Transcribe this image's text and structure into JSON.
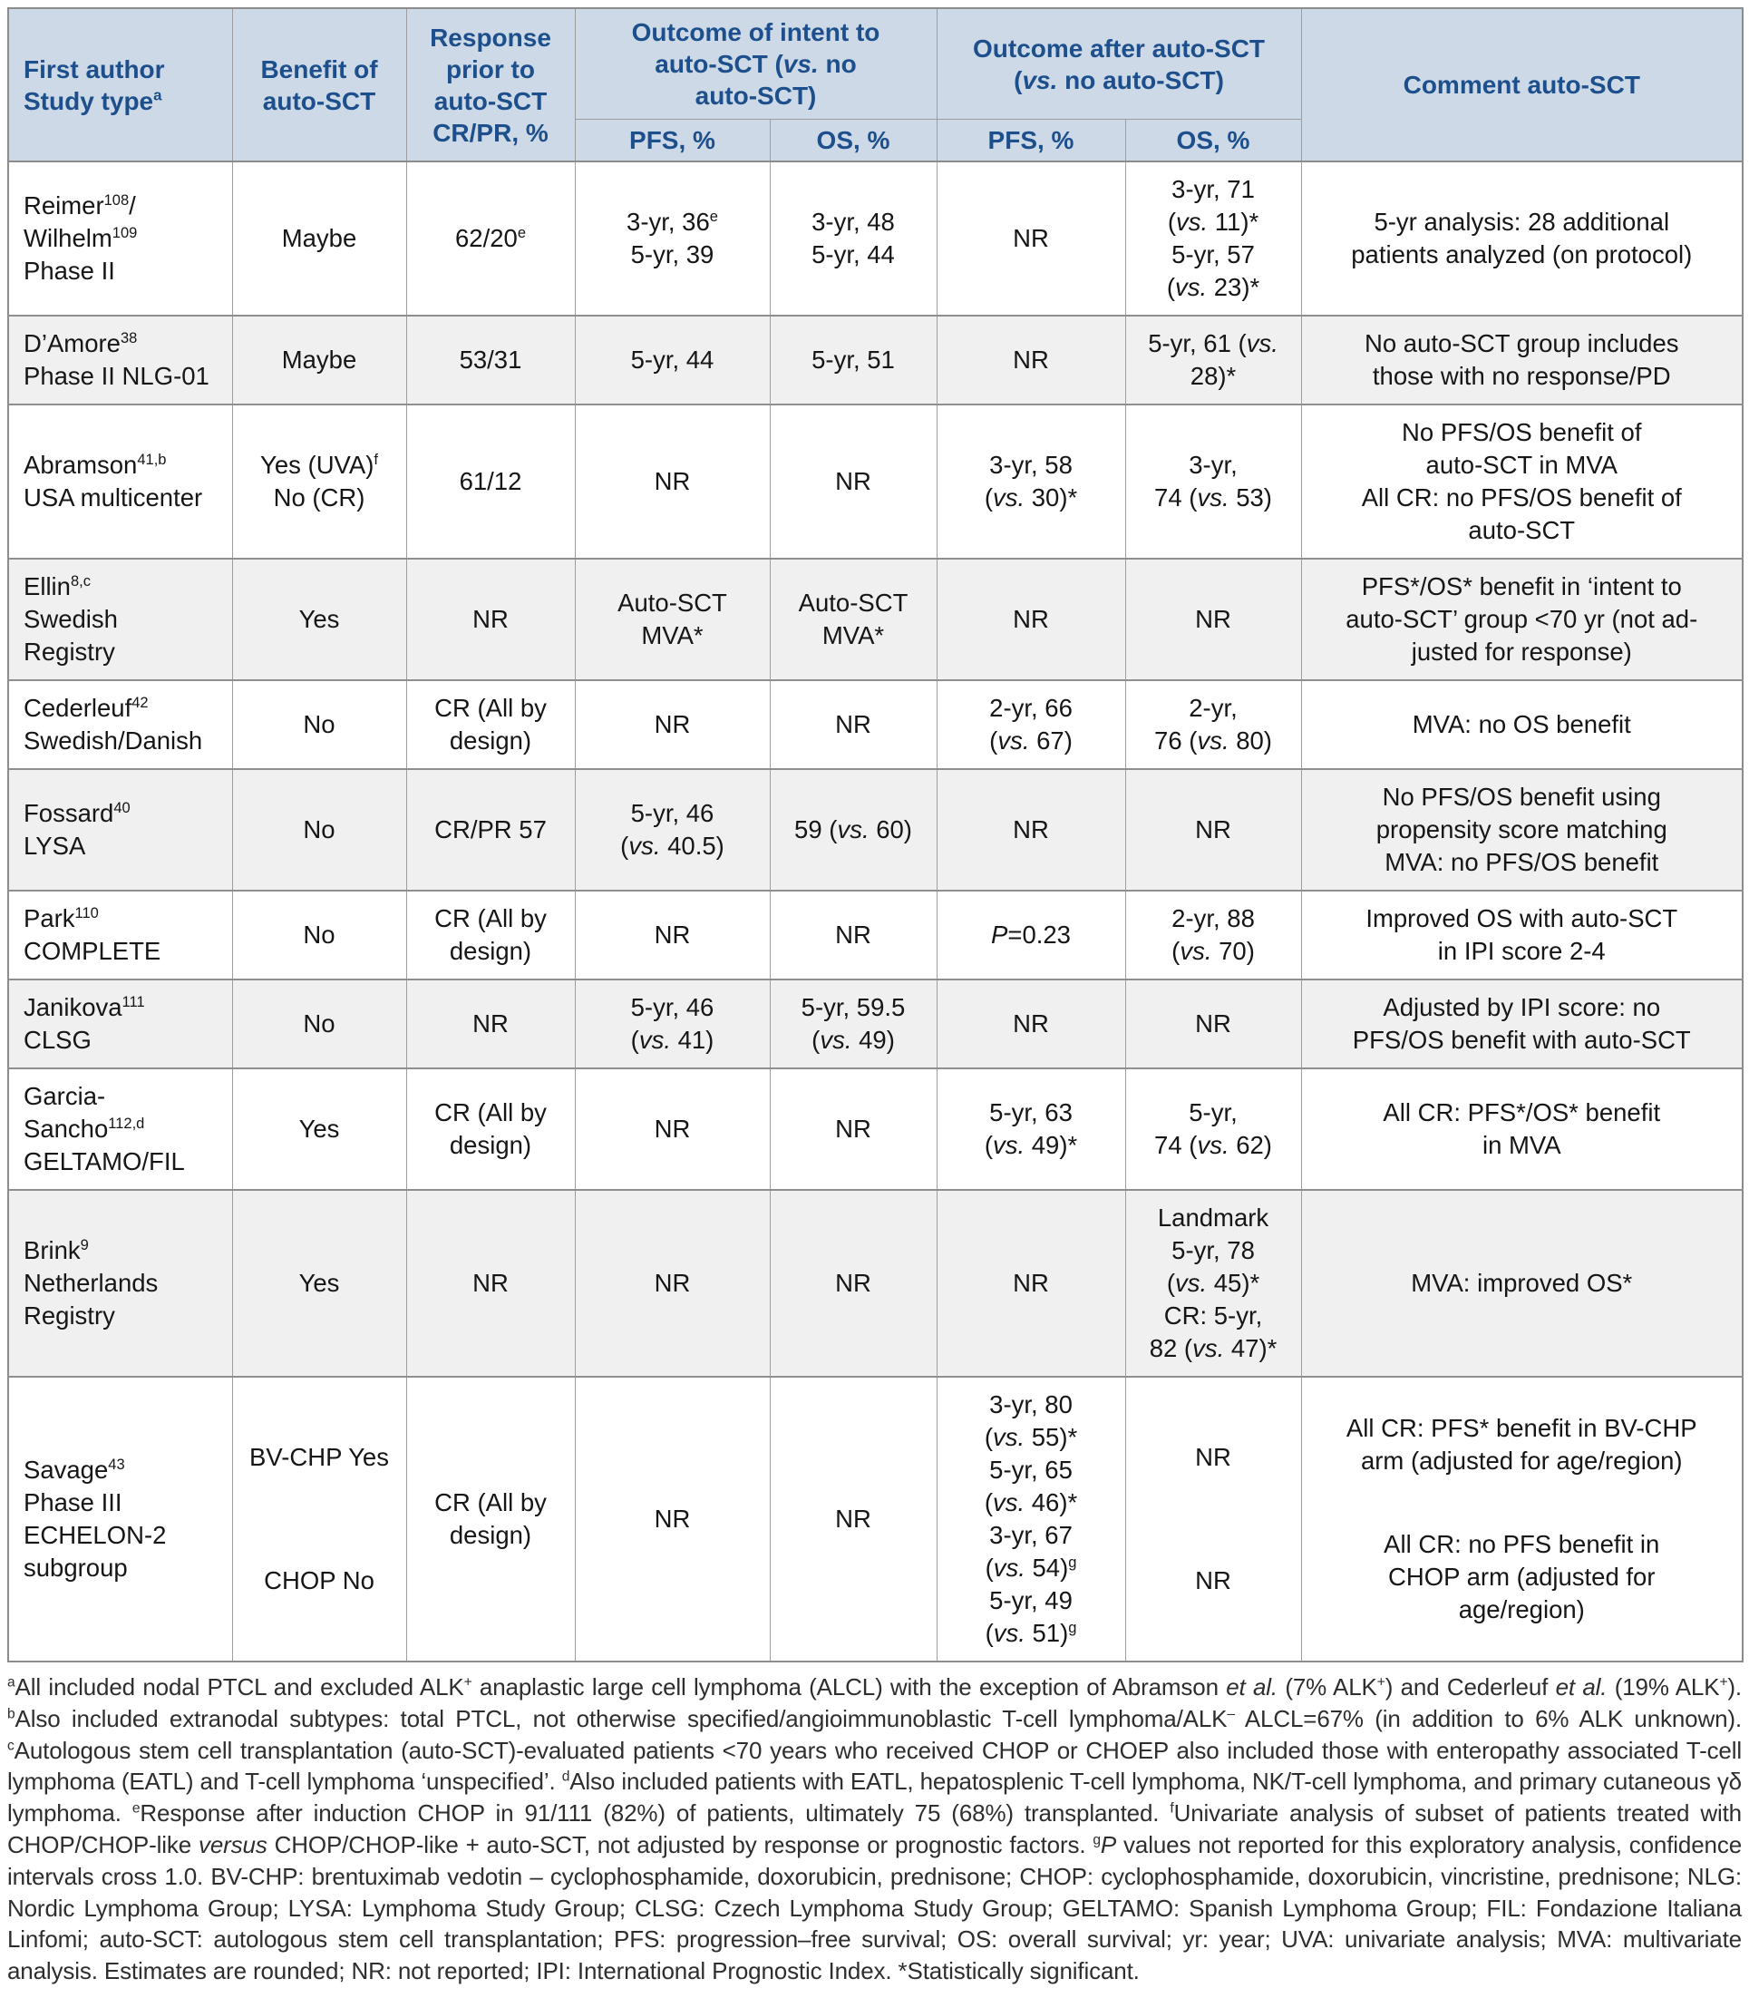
{
  "colors": {
    "header_bg": "#cdd9e6",
    "header_text": "#1c4f8c",
    "row_alt_bg": "#f0f0f0",
    "border": "#8c8c8c"
  },
  "table": {
    "header": {
      "col_author": "First author\nStudy type^{a}",
      "col_benefit": "Benefit of\nauto-SCT",
      "col_response": "Response\nprior to\nauto-SCT\nCR/PR, %",
      "group_intent": "Outcome of intent to\nauto-SCT (~vs.~ no\nauto-SCT)",
      "group_after": "Outcome after auto-SCT\n(~vs.~ no auto-SCT)",
      "sub_pfs": "PFS, %",
      "sub_os": "OS, %",
      "col_comment": "Comment auto-SCT"
    },
    "rows": [
      {
        "author": "Reimer^{108}/\nWilhelm^{109}\nPhase II",
        "benefit": "Maybe",
        "response": "62/20^{e}",
        "pfs_intent": "3-yr, 36^{e}\n5-yr, 39",
        "os_intent": "3-yr, 48\n5-yr, 44",
        "pfs_after": "NR",
        "os_after": "3-yr, 71\n(~vs.~ 11)*\n5-yr, 57\n(~vs.~ 23)*",
        "comment": "5-yr analysis: 28 additional\npatients analyzed (on protocol)"
      },
      {
        "author": "D’Amore^{38}\nPhase II NLG-01",
        "benefit": "Maybe",
        "response": "53/31",
        "pfs_intent": "5-yr, 44",
        "os_intent": "5-yr, 51",
        "pfs_after": "NR",
        "os_after": "5-yr, 61 (~vs.~\n28)*",
        "comment": "No auto-SCT group includes\nthose with no response/PD"
      },
      {
        "author": "Abramson^{41,b}\nUSA multicenter",
        "benefit": "Yes (UVA)^{f}\nNo (CR)",
        "response": "61/12",
        "pfs_intent": "NR",
        "os_intent": "NR",
        "pfs_after": "3-yr, 58\n(~vs.~ 30)*",
        "os_after": "3-yr,\n74 (~vs.~ 53)",
        "comment": "No PFS/OS benefit of\nauto-SCT in MVA\nAll CR: no PFS/OS benefit of\nauto-SCT"
      },
      {
        "author": "Ellin^{8,c}\nSwedish\nRegistry",
        "benefit": "Yes",
        "response": "NR",
        "pfs_intent": "Auto-SCT\nMVA*",
        "os_intent": "Auto-SCT\nMVA*",
        "pfs_after": "NR",
        "os_after": "NR",
        "comment": "PFS*/OS* benefit in ‘intent to\nauto-SCT’ group <70 yr (not ad-\njusted for response)"
      },
      {
        "author": "Cederleuf^{42}\nSwedish/Danish",
        "benefit": "No",
        "response": "CR (All by\ndesign)",
        "pfs_intent": "NR",
        "os_intent": "NR",
        "pfs_after": "2-yr, 66\n(~vs.~ 67)",
        "os_after": "2-yr,\n76 (~vs.~ 80)",
        "comment": "MVA: no OS benefit"
      },
      {
        "author": "Fossard^{40}\nLYSA",
        "benefit": "No",
        "response": "CR/PR 57",
        "pfs_intent": "5-yr, 46\n(~vs.~ 40.5)",
        "os_intent": "59 (~vs.~ 60)",
        "pfs_after": "NR",
        "os_after": "NR",
        "comment": "No PFS/OS benefit using\npropensity score matching\nMVA: no PFS/OS benefit"
      },
      {
        "author": "Park^{110}\nCOMPLETE",
        "benefit": "No",
        "response": "CR (All by\ndesign)",
        "pfs_intent": "NR",
        "os_intent": "NR",
        "pfs_after": "~P~=0.23",
        "os_after": "2-yr, 88\n(~vs.~ 70)",
        "comment": "Improved OS with auto-SCT\nin IPI score 2-4"
      },
      {
        "author": "Janikova^{111}\nCLSG",
        "benefit": "No",
        "response": "NR",
        "pfs_intent": "5-yr, 46\n(~vs.~ 41)",
        "os_intent": "5-yr, 59.5\n(~vs.~ 49)",
        "pfs_after": "NR",
        "os_after": "NR",
        "comment": "Adjusted by IPI score: no\nPFS/OS benefit with auto-SCT"
      },
      {
        "author": "Garcia-\nSancho^{112,d}\nGELTAMO/FIL",
        "benefit": "Yes",
        "response": "CR (All by\ndesign)",
        "pfs_intent": "NR",
        "os_intent": "NR",
        "pfs_after": "5-yr, 63\n(~vs.~ 49)*",
        "os_after": "5-yr,\n74 (~vs.~ 62)",
        "comment": "All CR: PFS*/OS* benefit\nin MVA"
      },
      {
        "author": "Brink^{9}\nNetherlands\nRegistry",
        "benefit": "Yes",
        "response": "NR",
        "pfs_intent": "NR",
        "os_intent": "NR",
        "pfs_after": "NR",
        "os_after": "Landmark\n5-yr, 78\n(~vs.~ 45)*\nCR: 5-yr,\n82 (~vs.~ 47)*",
        "comment": "MVA: improved OS*"
      },
      {
        "author": "Savage^{43}\nPhase III\nECHELON-2\nsubgroup",
        "benefit": [
          "BV-CHP Yes",
          "CHOP No"
        ],
        "response": "CR (All by\ndesign)",
        "pfs_intent": "NR",
        "os_intent": "NR",
        "pfs_after": "3-yr, 80\n(~vs.~ 55)*\n5-yr, 65\n(~vs.~ 46)*\n3-yr, 67\n(~vs.~ 54)^{g}\n5-yr, 49\n(~vs.~ 51)^{g}",
        "os_after": [
          "NR",
          "NR"
        ],
        "comment": [
          "All CR: PFS* benefit in BV-CHP\narm (adjusted for age/region)",
          "All CR: no PFS benefit in\nCHOP arm (adjusted for\nage/region)"
        ]
      }
    ]
  },
  "footnote": "^{a}All included nodal PTCL and excluded ALK^{+} anaplastic large cell lymphoma (ALCL) with the exception of Abramson ~et al.~ (7% ALK^{+}) and Cederleuf ~et al.~ (19% ALK^{+}). ^{b}Also included extranodal subtypes: total PTCL, not otherwise specified/angioimmunoblastic T-cell lymphoma/ALK^{–} ALCL=67% (in addition to 6% ALK unknown). ^{c}Autologous stem cell transplantation (auto-SCT)-evaluated patients <70 years who received CHOP or CHOEP also included those with enteropathy associated T-cell lymphoma (EATL) and T-cell lymphoma ‘unspecified’. ^{d}Also included patients with EATL, hepatosplenic T-cell lymphoma, NK/T-cell lymphoma, and primary cutaneous γδ  lymphoma. ^{e}Response after induction CHOP in 91/111 (82%) of patients, ultimately 75 (68%) transplanted. ^{f}Univariate analysis of subset of patients treated with CHOP/CHOP-like ~versus~ CHOP/CHOP-like + auto-SCT, not adjusted by response or prognostic factors. ^{g}~P~ values not reported for this exploratory analysis, confidence intervals cross 1.0. BV-CHP: brentuximab vedotin – cyclophosphamide, doxorubicin, prednisone; CHOP: cyclophosphamide, doxorubicin, vincristine, prednisone; NLG: Nordic Lymphoma Group; LYSA: Lymphoma Study Group; CLSG: Czech Lymphoma Study Group; GELTAMO: Spanish Lymphoma Group; FIL: Fondazione Italiana Linfomi; auto-SCT: autologous stem cell transplantation; PFS: progression–free survival; OS: overall survival; yr: year; UVA: univariate analysis; MVA: multivariate analysis. Estimates are rounded; NR: not reported; IPI: International Prognostic Index. *Statistically significant."
}
